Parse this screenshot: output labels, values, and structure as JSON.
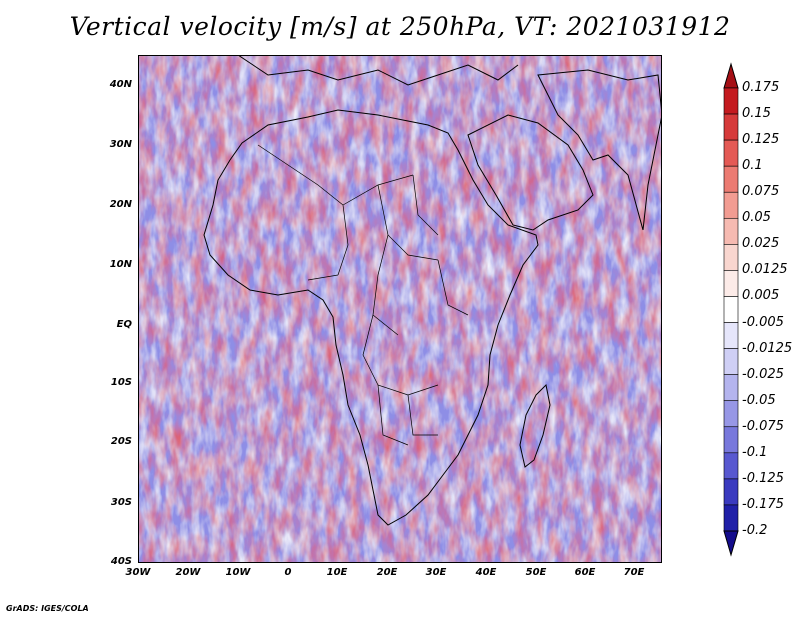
{
  "title": "Vertical velocity [m/s] at 250hPa, VT: 2021031912",
  "map": {
    "lat_labels": [
      "40N",
      "30N",
      "20N",
      "10N",
      "EQ",
      "10S",
      "20S",
      "30S",
      "40S"
    ],
    "lon_labels": [
      "30W",
      "20W",
      "10W",
      "0",
      "10E",
      "20E",
      "30E",
      "40E",
      "50E",
      "60E",
      "70E"
    ],
    "lat_range": [
      -40,
      45
    ],
    "lon_range": [
      -30,
      75
    ]
  },
  "legend": {
    "labels": [
      "0.175",
      "0.15",
      "0.125",
      "0.1",
      "0.075",
      "0.05",
      "0.025",
      "0.0125",
      "0.005",
      "-0.005",
      "-0.0125",
      "-0.025",
      "-0.05",
      "-0.075",
      "-0.1",
      "-0.125",
      "-0.175",
      "-0.2"
    ],
    "colors": [
      "#a50f15",
      "#c41a1f",
      "#d63a3a",
      "#e45a55",
      "#ec7b72",
      "#f29c92",
      "#f6bab1",
      "#f9d6cf",
      "#fcebe8",
      "#ffffff",
      "#e6e6fb",
      "#cfcff5",
      "#b4b4ee",
      "#9797e6",
      "#7878dc",
      "#5858d0",
      "#3a3abf",
      "#2020a8",
      "#140c8c"
    ]
  },
  "footer": "GrADS: IGES/COLA"
}
